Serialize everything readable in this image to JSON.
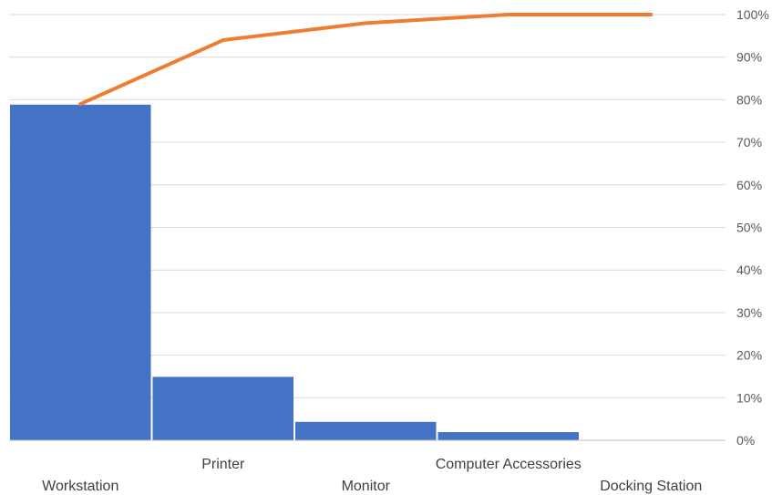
{
  "chart_data": {
    "type": "bar",
    "subtype": "pareto",
    "title": "",
    "xlabel": "",
    "ylabel": "",
    "categories": [
      "Workstation",
      "Printer",
      "Monitor",
      "Computer Accessories",
      "Docking Station"
    ],
    "series": [
      {
        "kind": "bar",
        "axis": "left",
        "values": [
          82,
          15.5,
          4.5,
          2,
          0
        ]
      },
      {
        "kind": "line",
        "axis": "right",
        "values": [
          0.79,
          0.94,
          0.98,
          1.0,
          1.0
        ]
      }
    ],
    "ylim": [
      0,
      104
    ],
    "y2lim": [
      0,
      1.0
    ],
    "y2_ticks": [
      "0%",
      "10%",
      "20%",
      "30%",
      "40%",
      "50%",
      "60%",
      "70%",
      "80%",
      "90%",
      "100%"
    ],
    "grid": true,
    "legend": "none",
    "colors": {
      "bar": "#4472C4",
      "line": "#ED7D31",
      "grid": "#D9D9D9"
    }
  }
}
